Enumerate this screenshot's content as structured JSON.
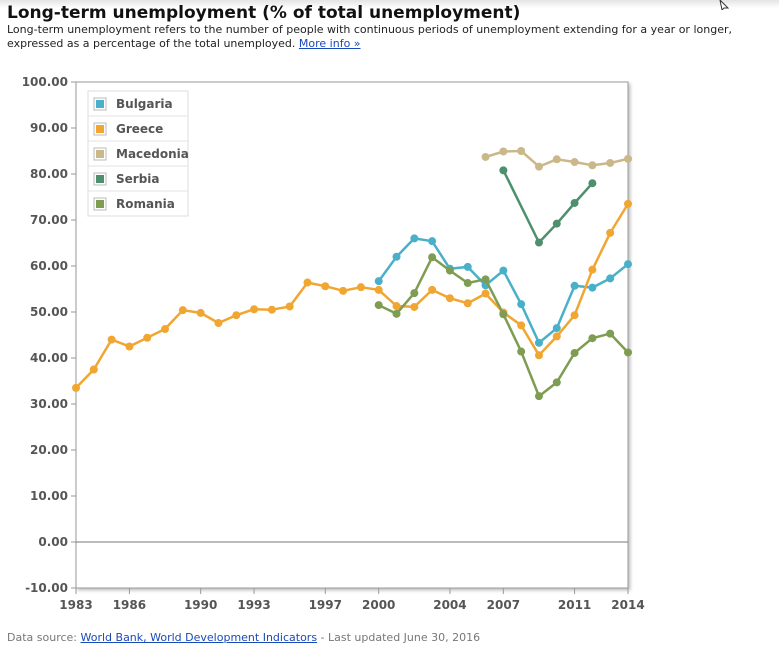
{
  "page": {
    "title": "Long-term unemployment (% of total unemployment)",
    "description": "Long-term unemployment refers to the number of people with continuous periods of unemployment extending for a year or longer, expressed as a percentage of the total unemployed.",
    "more_info": "More info »",
    "footer_prefix": "Data source: ",
    "footer_link": "World Bank, World Development Indicators",
    "footer_suffix": " - Last updated June 30, 2016"
  },
  "chart_data": {
    "type": "line",
    "title": "Long-term unemployment (% of total unemployment)",
    "xlabel": "",
    "ylabel": "",
    "xlim": [
      1983,
      2014
    ],
    "ylim": [
      -10,
      100
    ],
    "x_ticks": [
      "1983",
      "1986",
      "1990",
      "1993",
      "1997",
      "2000",
      "2004",
      "2007",
      "2011",
      "2014"
    ],
    "y_ticks": [
      "100.00",
      "90.00",
      "80.00",
      "70.00",
      "60.00",
      "50.00",
      "40.00",
      "30.00",
      "20.00",
      "10.00",
      "0.00",
      "-10.00"
    ],
    "legend_position": "top-left",
    "grid": false,
    "series": [
      {
        "name": "Bulgaria",
        "color": "#4ab0c9",
        "points": [
          [
            2000,
            56.7
          ],
          [
            2001,
            62.0
          ],
          [
            2002,
            66.0
          ],
          [
            2003,
            65.4
          ],
          [
            2004,
            59.4
          ],
          [
            2005,
            59.8
          ],
          [
            2006,
            55.8
          ],
          [
            2007,
            59.0
          ],
          [
            2008,
            51.7
          ],
          [
            2009,
            43.3
          ],
          [
            2010,
            46.5
          ],
          [
            2011,
            55.7
          ],
          [
            2012,
            55.3
          ],
          [
            2013,
            57.3
          ],
          [
            2014,
            60.4
          ]
        ]
      },
      {
        "name": "Greece",
        "color": "#f0a630",
        "points": [
          [
            1983,
            33.5
          ],
          [
            1984,
            37.5
          ],
          [
            1985,
            44.0
          ],
          [
            1986,
            42.5
          ],
          [
            1987,
            44.4
          ],
          [
            1988,
            46.3
          ],
          [
            1989,
            50.4
          ],
          [
            1990,
            49.8
          ],
          [
            1991,
            47.6
          ],
          [
            1992,
            49.3
          ],
          [
            1993,
            50.6
          ],
          [
            1994,
            50.5
          ],
          [
            1995,
            51.2
          ],
          [
            1996,
            56.4
          ],
          [
            1997,
            55.6
          ],
          [
            1998,
            54.6
          ],
          [
            1999,
            55.4
          ],
          [
            2000,
            54.8
          ],
          [
            2001,
            51.3
          ],
          [
            2002,
            51.1
          ],
          [
            2003,
            54.8
          ],
          [
            2004,
            53.0
          ],
          [
            2005,
            51.9
          ],
          [
            2006,
            54.0
          ],
          [
            2007,
            49.9
          ],
          [
            2008,
            47.1
          ],
          [
            2009,
            40.6
          ],
          [
            2010,
            44.7
          ],
          [
            2011,
            49.3
          ],
          [
            2012,
            59.2
          ],
          [
            2013,
            67.2
          ],
          [
            2014,
            73.5
          ]
        ]
      },
      {
        "name": "Macedonia",
        "color": "#cbb88a",
        "points": [
          [
            2006,
            83.7
          ],
          [
            2007,
            84.9
          ],
          [
            2008,
            85.0
          ],
          [
            2009,
            81.6
          ],
          [
            2010,
            83.2
          ],
          [
            2011,
            82.6
          ],
          [
            2012,
            81.9
          ],
          [
            2013,
            82.4
          ],
          [
            2014,
            83.3
          ]
        ]
      },
      {
        "name": "Serbia",
        "color": "#4e8f6d",
        "points": [
          [
            2007,
            80.8
          ],
          [
            2009,
            65.1
          ],
          [
            2010,
            69.2
          ],
          [
            2011,
            73.7
          ],
          [
            2012,
            78.0
          ]
        ]
      },
      {
        "name": "Romania",
        "color": "#7e9c52",
        "points": [
          [
            2000,
            51.5
          ],
          [
            2001,
            49.6
          ],
          [
            2002,
            54.1
          ],
          [
            2003,
            61.9
          ],
          [
            2004,
            59.0
          ],
          [
            2005,
            56.3
          ],
          [
            2006,
            57.1
          ],
          [
            2007,
            49.5
          ],
          [
            2008,
            41.4
          ],
          [
            2009,
            31.7
          ],
          [
            2010,
            34.7
          ],
          [
            2011,
            41.1
          ],
          [
            2012,
            44.3
          ],
          [
            2013,
            45.3
          ],
          [
            2014,
            41.2
          ]
        ]
      }
    ]
  }
}
